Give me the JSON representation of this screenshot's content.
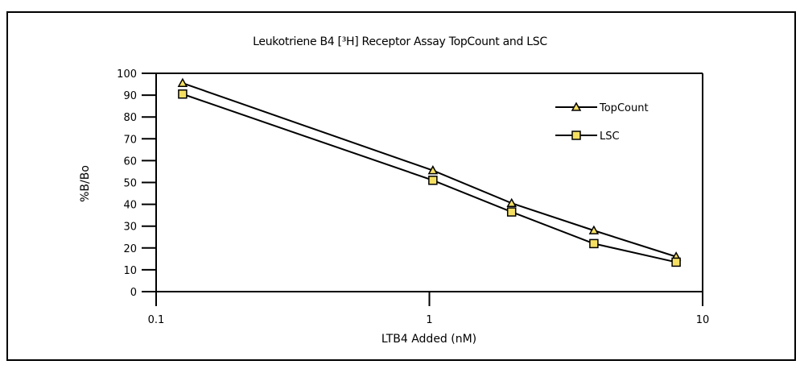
{
  "chart_data": {
    "type": "line",
    "title": "Leukotriene B4 [³H] Receptor Assay TopCount and LSC",
    "xlabel": "LTB4 Added (nM)",
    "ylabel": "%B/Bo",
    "xscale": "log",
    "xlim": [
      0.1,
      10
    ],
    "ylim": [
      0,
      100
    ],
    "x_ticks": [
      0.1,
      1,
      10
    ],
    "x_tick_labels": [
      "0.1",
      "1",
      "10"
    ],
    "y_ticks": [
      0,
      10,
      20,
      30,
      40,
      50,
      60,
      70,
      80,
      90,
      100
    ],
    "y_tick_labels": [
      "0",
      "10",
      "20",
      "30",
      "40",
      "50",
      "60",
      "70",
      "80",
      "90",
      "100"
    ],
    "grid": false,
    "legend_position": "upper right (inside plot)",
    "x": [
      0.125,
      1.03,
      2.0,
      4.0,
      8.0
    ],
    "series": [
      {
        "name": "TopCount",
        "marker": "triangle",
        "marker_color": "#f5df62",
        "values": [
          95.5,
          55.5,
          40.5,
          28,
          16
        ]
      },
      {
        "name": "LSC",
        "marker": "square",
        "marker_color": "#f5df62",
        "values": [
          90.5,
          51,
          36.5,
          22,
          13.5
        ]
      }
    ]
  },
  "legend": {
    "items": [
      "TopCount",
      "LSC"
    ]
  },
  "colors": {
    "line": "#000000",
    "marker_fill": "#f5df62",
    "background": "#ffffff"
  }
}
